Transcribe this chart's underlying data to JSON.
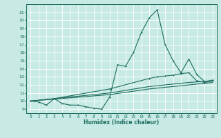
{
  "xlabel": "Humidex (Indice chaleur)",
  "ylabel": "",
  "background_color": "#c8eae4",
  "grid_color": "#ffffff",
  "line_color": "#1a6b5e",
  "xlim": [
    -0.5,
    23.5
  ],
  "ylim": [
    8.5,
    22
  ],
  "xticks": [
    0,
    1,
    2,
    3,
    4,
    5,
    6,
    7,
    8,
    9,
    10,
    11,
    12,
    13,
    14,
    15,
    16,
    17,
    18,
    19,
    20,
    21,
    22,
    23
  ],
  "yticks": [
    9,
    10,
    11,
    12,
    13,
    14,
    15,
    16,
    17,
    18,
    19,
    20,
    21
  ],
  "series1": [
    [
      0,
      10
    ],
    [
      1,
      9.9
    ],
    [
      2,
      9.5
    ],
    [
      3,
      10.3
    ],
    [
      4,
      9.7
    ],
    [
      5,
      9.5
    ],
    [
      6,
      9.5
    ],
    [
      7,
      9.3
    ],
    [
      8,
      9.1
    ],
    [
      9,
      9.0
    ],
    [
      10,
      10.5
    ],
    [
      11,
      14.5
    ],
    [
      12,
      14.3
    ],
    [
      13,
      16.0
    ],
    [
      14,
      18.5
    ],
    [
      15,
      20.3
    ],
    [
      16,
      21.3
    ],
    [
      17,
      17.0
    ],
    [
      18,
      15.0
    ],
    [
      19,
      13.5
    ],
    [
      20,
      15.2
    ],
    [
      21,
      13.3
    ],
    [
      22,
      12.4
    ],
    [
      23,
      12.6
    ]
  ],
  "series2": [
    [
      0,
      10
    ],
    [
      3,
      10.3
    ],
    [
      10,
      11.5
    ],
    [
      15,
      12.8
    ],
    [
      16,
      13.0
    ],
    [
      17,
      13.1
    ],
    [
      18,
      13.2
    ],
    [
      19,
      13.4
    ],
    [
      20,
      13.5
    ],
    [
      21,
      12.5
    ],
    [
      22,
      12.3
    ],
    [
      23,
      12.5
    ]
  ],
  "series3": [
    [
      0,
      10
    ],
    [
      10,
      11.0
    ],
    [
      15,
      11.8
    ],
    [
      20,
      12.3
    ],
    [
      23,
      12.5
    ]
  ],
  "series4": [
    [
      0,
      10
    ],
    [
      10,
      10.8
    ],
    [
      15,
      11.5
    ],
    [
      20,
      12.0
    ],
    [
      23,
      12.3
    ]
  ]
}
